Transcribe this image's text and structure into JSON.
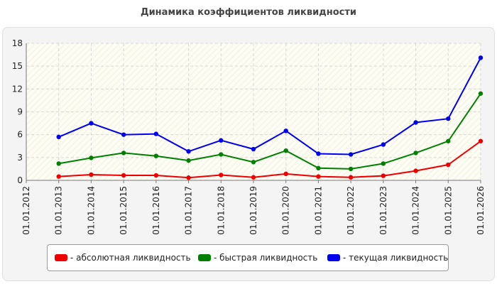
{
  "chart_data": {
    "type": "line",
    "title": "Динамика коэффициентов ликвидности",
    "x": [
      "01.01.2012",
      "01.01.2013",
      "01.01.2014",
      "01.01.2015",
      "01.01.2016",
      "01.01.2017",
      "01.01.2018",
      "01.01.2019",
      "01.01.2020",
      "01.01.2021",
      "01.01.2022",
      "01.01.2023",
      "01.01.2024",
      "01.01.2025",
      "01.01.2026"
    ],
    "y_ticks": [
      "0",
      "3",
      "6",
      "9",
      "12",
      "15",
      "18"
    ],
    "ylim": [
      0,
      18
    ],
    "grid": true,
    "legend_position": "bottom",
    "series": [
      {
        "name": "- абсолютная ликвидность",
        "color": "#ee0000",
        "values": [
          null,
          0.5,
          0.75,
          0.65,
          0.65,
          0.35,
          0.7,
          0.4,
          0.85,
          0.5,
          0.4,
          0.6,
          1.25,
          2.05,
          5.15
        ]
      },
      {
        "name": "- быстрая ликвидность",
        "color": "#008000",
        "values": [
          null,
          2.2,
          2.95,
          3.6,
          3.2,
          2.6,
          3.4,
          2.4,
          3.9,
          1.6,
          1.5,
          2.2,
          3.6,
          5.15,
          11.4
        ]
      },
      {
        "name": "- текущая ликвидность",
        "color": "#0000ee",
        "values": [
          null,
          5.7,
          7.5,
          6.0,
          6.1,
          3.8,
          5.25,
          4.1,
          6.5,
          3.5,
          3.4,
          4.7,
          7.6,
          8.1,
          16.1
        ]
      }
    ]
  }
}
